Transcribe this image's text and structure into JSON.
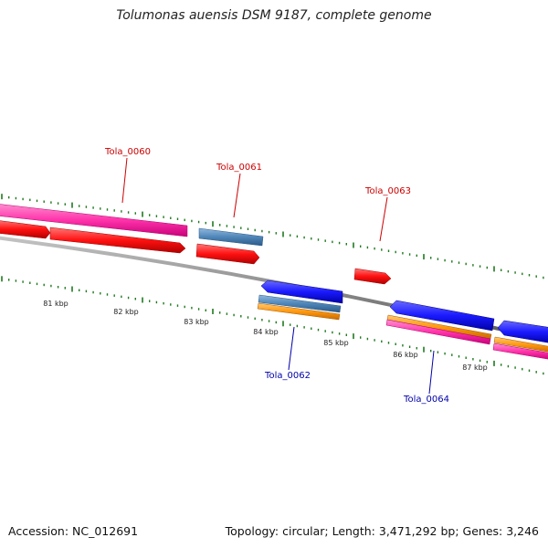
{
  "title": "Tolumonas auensis DSM 9187, complete genome",
  "footer": {
    "accession": "Accession: NC_012691",
    "summary": "Topology: circular; Length: 3,471,292 bp; Genes: 3,246"
  },
  "colors": {
    "backbone": "#8a8a8a",
    "tick": "#1f7a1f",
    "label_forward": "#cc0000",
    "label_reverse": "#0000aa",
    "magenta": "#ff33aa",
    "red": "#ff1111",
    "steel": "#4f86b8",
    "blue": "#1a1aff",
    "orange": "#ff9910"
  },
  "scale_labels": [
    "81 kbp",
    "82 kbp",
    "83 kbp",
    "84 kbp",
    "85 kbp",
    "86 kbp",
    "87 kbp"
  ],
  "gene_labels": [
    {
      "text": "Tola_0060",
      "strand": "forward"
    },
    {
      "text": "Tola_0061",
      "strand": "forward"
    },
    {
      "text": "Tola_0063",
      "strand": "forward"
    },
    {
      "text": "Tola_0062",
      "strand": "reverse"
    },
    {
      "text": "Tola_0064",
      "strand": "reverse"
    }
  ]
}
